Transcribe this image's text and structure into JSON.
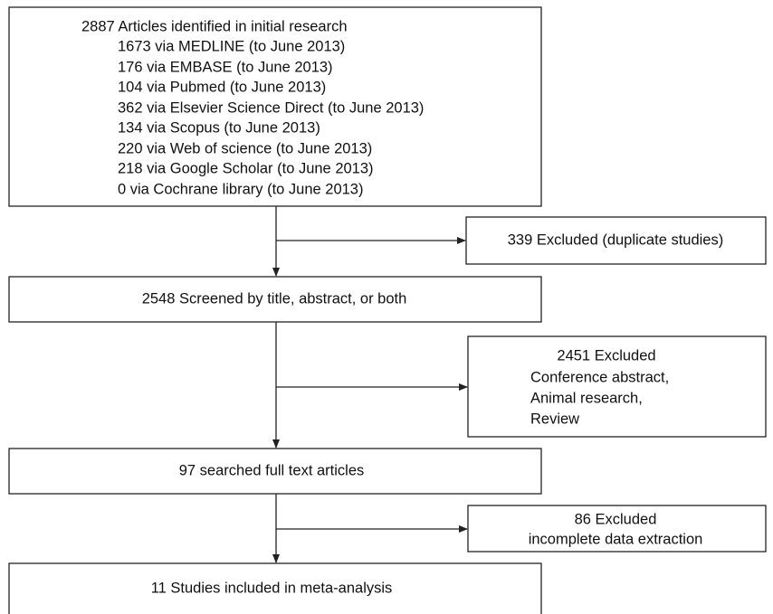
{
  "nodes": [
    {
      "lines": [
        "2887 Articles identified in initial research",
        "1673 via MEDLINE (to June 2013)",
        "176 via EMBASE (to June 2013)",
        "104 via Pubmed (to June 2013)",
        "362 via Elsevier Science Direct (to June 2013)",
        "134 via Scopus (to June 2013)",
        "220 via Web of science (to June 2013)",
        "218 via Google Scholar (to June 2013)",
        "0 via Cochrane library (to June 2013)"
      ]
    },
    {
      "lines": [
        "339 Excluded (duplicate studies)"
      ]
    },
    {
      "lines": [
        "2548 Screened by title, abstract, or both"
      ]
    },
    {
      "lines": [
        "2451 Excluded",
        "Conference abstract,",
        "Animal research,",
        "Review"
      ]
    },
    {
      "lines": [
        "97 searched full text articles"
      ]
    },
    {
      "lines": [
        "86 Excluded",
        "incomplete data extraction"
      ]
    },
    {
      "lines": [
        "11 Studies included in meta-analysis"
      ]
    }
  ]
}
